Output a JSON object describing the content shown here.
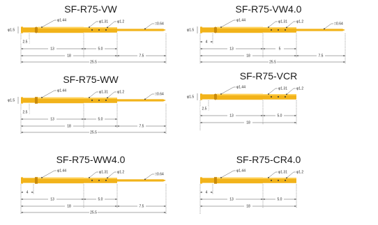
{
  "colors": {
    "pin_gold": "#f2b31a",
    "pin_highlight": "#ffd35a",
    "pin_shadow": "#c98a0a",
    "text": "#1a1a1a"
  },
  "pins": [
    {
      "title": "SF-R75-VW",
      "style": "v-shoulder",
      "has_tip": true,
      "callouts": {
        "diam_body": "φ1.44",
        "diam_mid": "φ1.31",
        "diam_barrel": "φ1.2",
        "tip": "□0.64",
        "diam_left": "φ1.5"
      },
      "dims": {
        "d1": "2.5",
        "d2": "13",
        "d3": "5.0",
        "d4": "18",
        "d5": "7.5",
        "d6": "25.5"
      }
    },
    {
      "title": "SF-R75-VW4.0",
      "style": "v-shoulder",
      "has_tip": true,
      "callouts": {
        "diam_body": "φ1.44",
        "diam_mid": "φ1.31",
        "diam_barrel": "φ1.2",
        "tip": "□0.64",
        "diam_left": "φ1.5"
      },
      "dims": {
        "d1": "4",
        "d2": "13",
        "d3": "5",
        "d4": "18",
        "d5": "7.5",
        "d6": "25.5"
      }
    },
    {
      "title": "SF-R75-WW",
      "style": "w-shoulder",
      "has_tip": true,
      "callouts": {
        "diam_body": "φ1.44",
        "diam_mid": "φ1.31",
        "diam_barrel": "φ1.2",
        "tip": "□0.64",
        "diam_left": "φ1.5"
      },
      "dims": {
        "d1": "2.5",
        "d2": "13",
        "d3": "5.0",
        "d4": "18",
        "d5": "7.5",
        "d6": "25.5"
      }
    },
    {
      "title": "SF-R75-VCR",
      "style": "v-shoulder",
      "has_tip": false,
      "callouts": {
        "diam_body": "φ1.44",
        "diam_mid": "φ1.31",
        "diam_barrel": "φ1.2",
        "tip": "",
        "diam_left": "φ1.5"
      },
      "dims": {
        "d1": "2.5",
        "d2": "13",
        "d3": "5.0",
        "d4": "18",
        "d5": "",
        "d6": ""
      }
    },
    {
      "title": "SF-R75-WW4.0",
      "style": "w-shoulder",
      "has_tip": true,
      "callouts": {
        "diam_body": "φ1.44",
        "diam_mid": "φ1.31",
        "diam_barrel": "φ1.2",
        "tip": "□0.64",
        "diam_left": ""
      },
      "dims": {
        "d1": "4",
        "d2": "13",
        "d3": "5.0",
        "d4": "18",
        "d5": "7.5",
        "d6": "25.5"
      }
    },
    {
      "title": "SF-R75-CR4.0",
      "style": "w-shoulder",
      "has_tip": false,
      "callouts": {
        "diam_body": "φ1.44",
        "diam_mid": "φ1.31",
        "diam_barrel": "φ1.2",
        "tip": "",
        "diam_left": ""
      },
      "dims": {
        "d1": "4",
        "d2": "13",
        "d3": "5.0",
        "d4": "18",
        "d5": "",
        "d6": ""
      }
    }
  ]
}
